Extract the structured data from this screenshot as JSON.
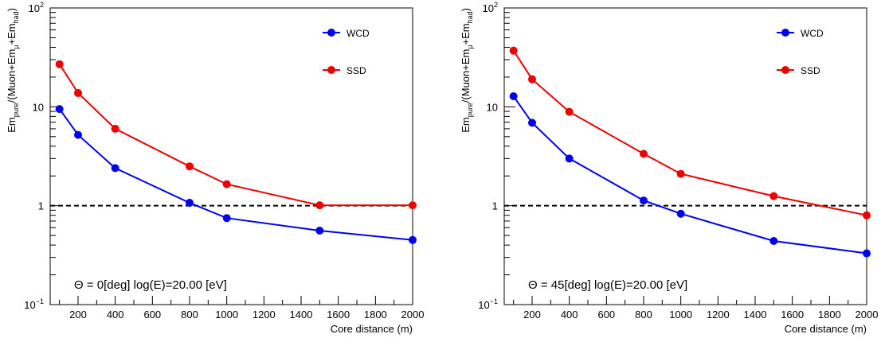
{
  "chart_data": [
    {
      "type": "line",
      "yscale": "log",
      "xlim": [
        50,
        2000
      ],
      "ylim": [
        0.1,
        100
      ],
      "xlabel": "Core distance (m)",
      "ylabel": {
        "base": "Em",
        "sub1": "pure",
        "mid": "/(Muon+Em",
        "sub2": "μ",
        "mid2": "+Em",
        "sub3": "had",
        "end": ")"
      },
      "xticks": [
        "200",
        "400",
        "600",
        "800",
        "1000",
        "1200",
        "1400",
        "1600",
        "1800",
        "2000"
      ],
      "yticks": {
        "base": "10",
        "exp_low": "−1",
        "one": "1",
        "ten": "10",
        "exp_high": "2"
      },
      "reference_line_y": 1,
      "annotation": "Θ = 0[deg] log(E)=20.00 [eV]",
      "legend_position": "top-right",
      "series": [
        {
          "name": "WCD",
          "color": "#0000ee",
          "x": [
            100,
            200,
            400,
            800,
            1000,
            1500,
            2000
          ],
          "y": [
            9.5,
            5.2,
            2.4,
            1.07,
            0.75,
            0.56,
            0.45
          ]
        },
        {
          "name": "SSD",
          "color": "#ee0000",
          "x": [
            100,
            200,
            400,
            800,
            1000,
            1500,
            2000
          ],
          "y": [
            27,
            13.8,
            6.0,
            2.5,
            1.65,
            1.01,
            1.01
          ]
        }
      ]
    },
    {
      "type": "line",
      "yscale": "log",
      "xlim": [
        50,
        2000
      ],
      "ylim": [
        0.1,
        100
      ],
      "xlabel": "Core distance (m)",
      "ylabel": {
        "base": "Em",
        "sub1": "pure",
        "mid": "/(Muon+Em",
        "sub2": "μ",
        "mid2": "+Em",
        "sub3": "had",
        "end": ")"
      },
      "xticks": [
        "200",
        "400",
        "600",
        "800",
        "1000",
        "1200",
        "1400",
        "1600",
        "1800",
        "2000"
      ],
      "yticks": {
        "base": "10",
        "exp_low": "−1",
        "one": "1",
        "ten": "10",
        "exp_high": "2"
      },
      "reference_line_y": 1,
      "annotation": "Θ = 45[deg] log(E)=20.00 [eV]",
      "legend_position": "top-right",
      "series": [
        {
          "name": "WCD",
          "color": "#0000ee",
          "x": [
            100,
            200,
            400,
            800,
            1000,
            1500,
            2000
          ],
          "y": [
            12.8,
            6.9,
            3.0,
            1.13,
            0.83,
            0.44,
            0.33
          ]
        },
        {
          "name": "SSD",
          "color": "#ee0000",
          "x": [
            100,
            200,
            400,
            800,
            1000,
            1500,
            2000
          ],
          "y": [
            37,
            19,
            8.9,
            3.35,
            2.1,
            1.25,
            0.8
          ]
        }
      ]
    }
  ]
}
